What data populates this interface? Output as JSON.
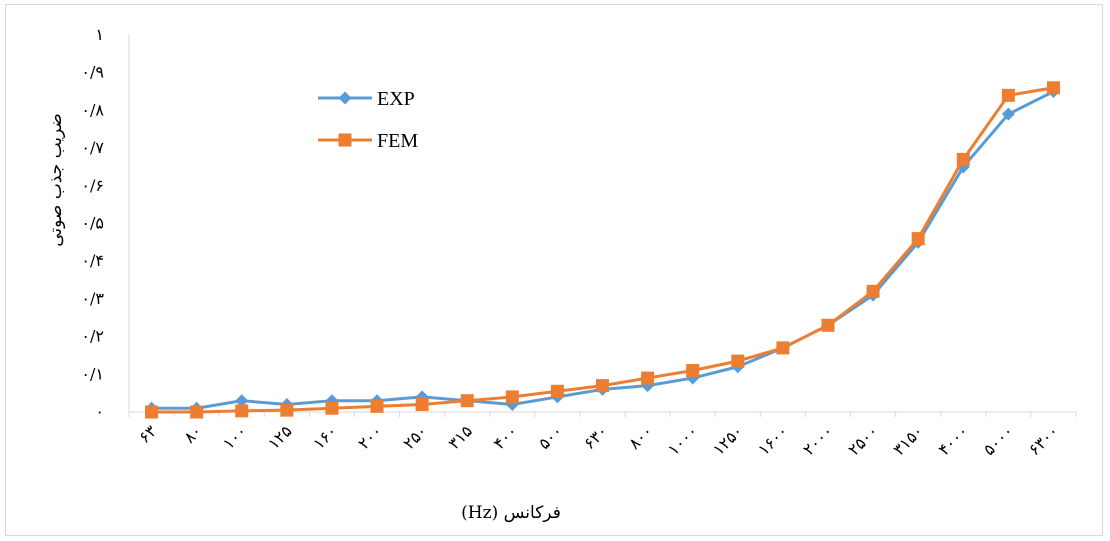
{
  "chart_data": {
    "type": "line",
    "title": "",
    "xlabel": "فرکانس (Hz)",
    "ylabel": "ضریب جذب صوتی",
    "ylim": [
      0,
      1
    ],
    "y_ticks": [
      "۰",
      "۰/۱",
      "۰/۲",
      "۰/۳",
      "۰/۴",
      "۰/۵",
      "۰/۶",
      "۰/۷",
      "۰/۸",
      "۰/۹",
      "۱"
    ],
    "categories": [
      "۶۳",
      "۸۰",
      "۱۰۰",
      "۱۲۵",
      "۱۶۰",
      "۲۰۰",
      "۲۵۰",
      "۳۱۵",
      "۴۰۰",
      "۵۰۰",
      "۶۳۰",
      "۸۰۰",
      "۱۰۰۰",
      "۱۲۵۰",
      "۱۶۰۰",
      "۲۰۰۰",
      "۲۵۰۰",
      "۳۱۵۰",
      "۴۰۰۰",
      "۵۰۰۰",
      "۶۳۰۰"
    ],
    "series": [
      {
        "name": "EXP",
        "color": "#5b9bd5",
        "marker": "diamond",
        "values": [
          0.01,
          0.01,
          0.03,
          0.02,
          0.03,
          0.03,
          0.04,
          0.03,
          0.02,
          0.04,
          0.06,
          0.07,
          0.09,
          0.12,
          0.17,
          0.23,
          0.31,
          0.45,
          0.65,
          0.79,
          0.85
        ]
      },
      {
        "name": "FEM",
        "color": "#ed7d31",
        "marker": "square",
        "values": [
          0.0,
          0.0,
          0.003,
          0.005,
          0.01,
          0.015,
          0.02,
          0.03,
          0.04,
          0.055,
          0.07,
          0.09,
          0.11,
          0.135,
          0.17,
          0.23,
          0.32,
          0.46,
          0.67,
          0.84,
          0.86
        ]
      }
    ],
    "legend_position": "top-left",
    "grid": false
  }
}
